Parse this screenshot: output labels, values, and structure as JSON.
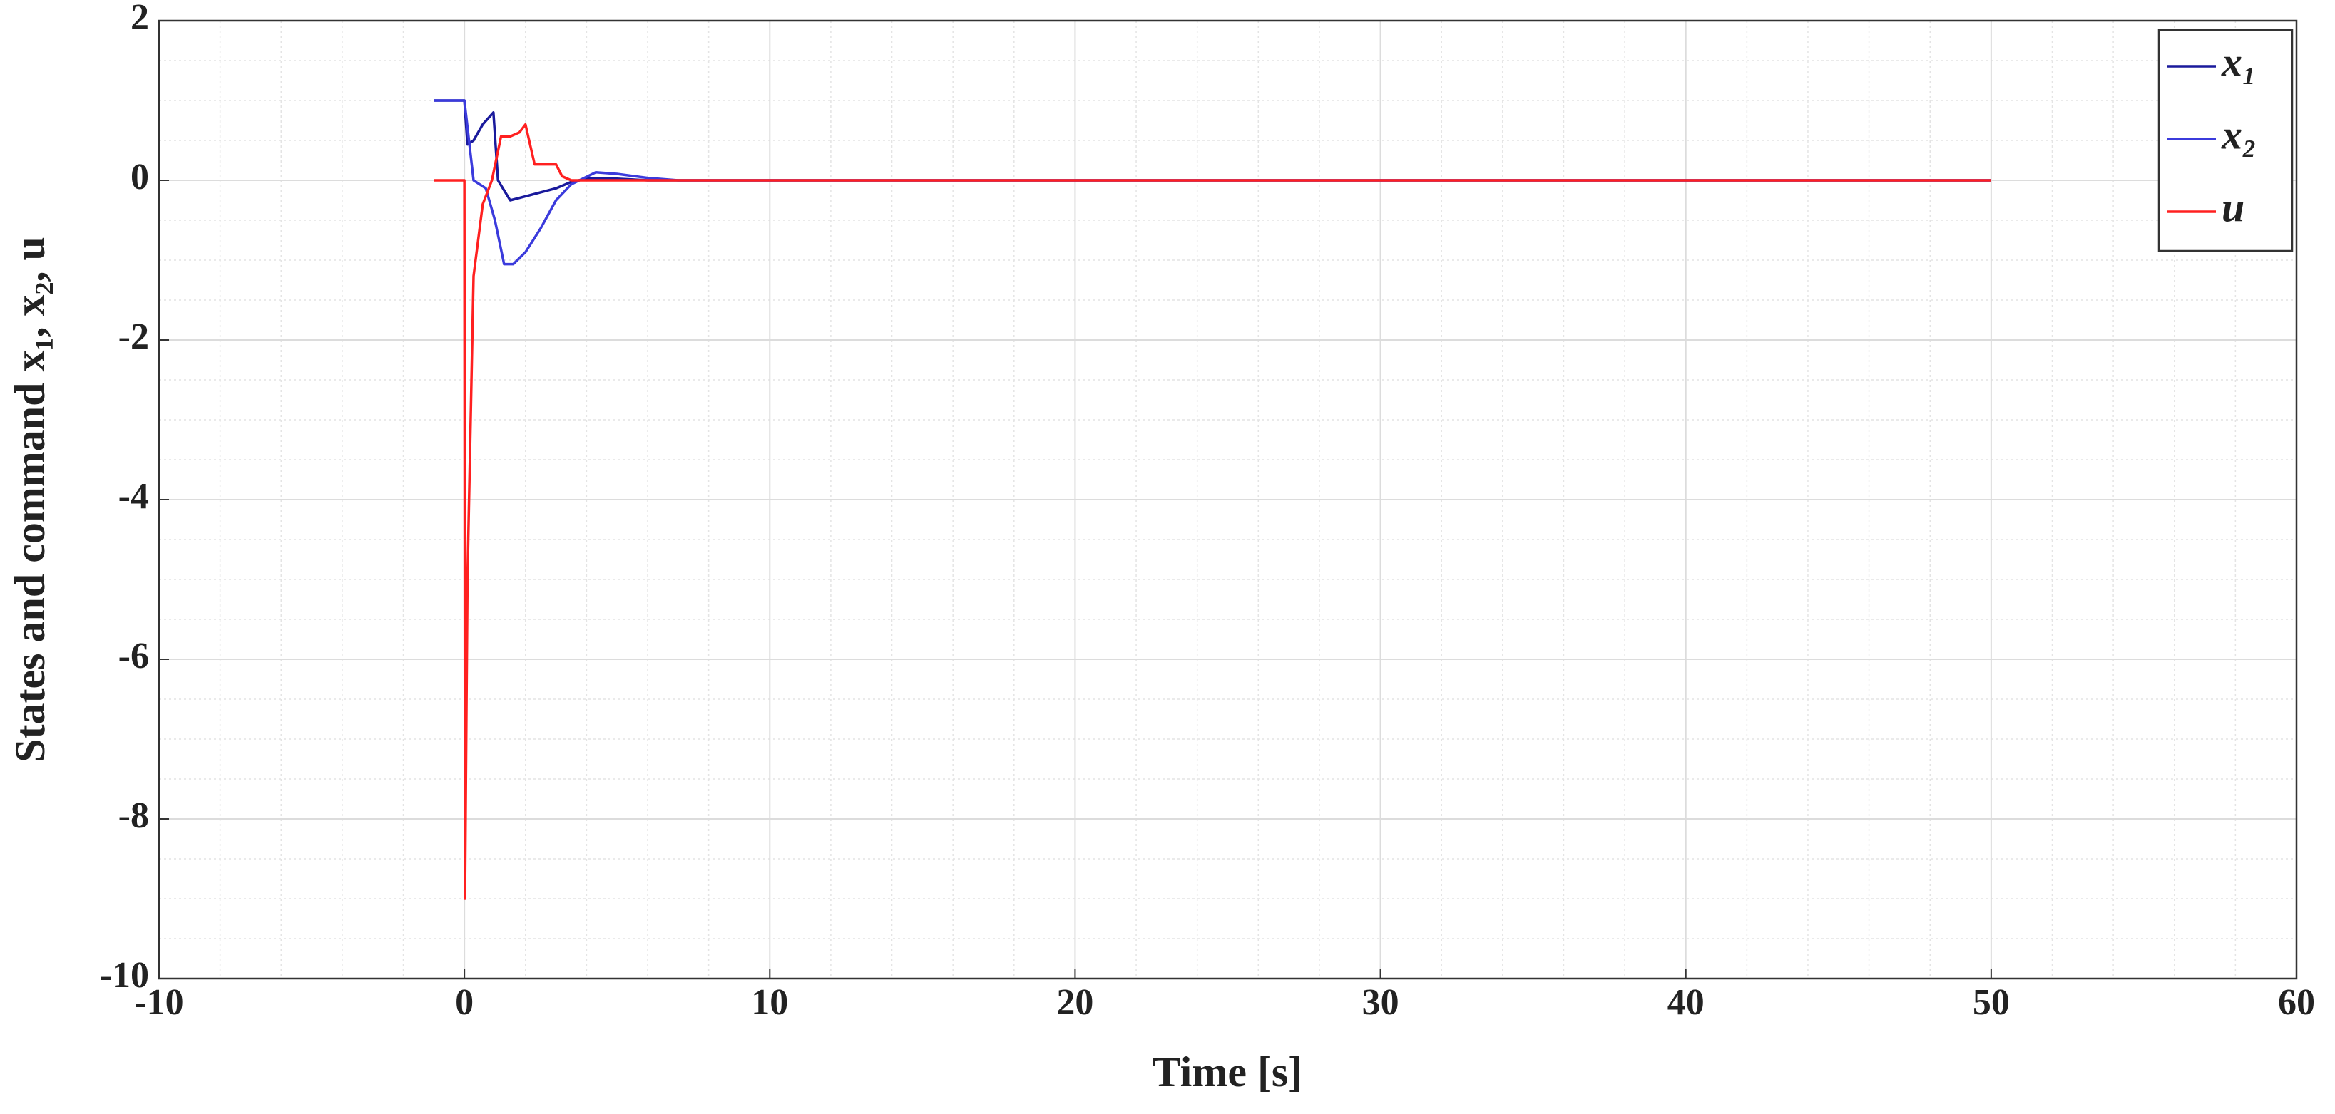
{
  "chart_data": {
    "type": "line",
    "xlabel": "Time [s]",
    "ylabel": "States and command x₁, x₂, u",
    "xlim": [
      -10,
      60
    ],
    "ylim": [
      -10,
      2
    ],
    "xticks": [
      -10,
      0,
      10,
      20,
      30,
      40,
      50,
      60
    ],
    "yticks": [
      -10,
      -8,
      -6,
      -4,
      -2,
      0,
      2
    ],
    "grid": true,
    "minor_grid": true,
    "legend": "upper right",
    "series": [
      {
        "name": "x₁",
        "color": "#1a1a9c",
        "x": [
          -1,
          0,
          0.1,
          0.3,
          0.6,
          0.95,
          1.1,
          1.5,
          2,
          2.5,
          3,
          3.5,
          4,
          5,
          6,
          8,
          50
        ],
        "values": [
          1,
          1,
          0.45,
          0.5,
          0.7,
          0.85,
          0,
          -0.25,
          -0.2,
          -0.15,
          -0.1,
          -0.02,
          0.02,
          0.02,
          0,
          0,
          0
        ]
      },
      {
        "name": "x₂",
        "color": "#3b3bdc",
        "x": [
          -1,
          0,
          0.3,
          0.7,
          1,
          1.3,
          1.6,
          2,
          2.5,
          3,
          3.5,
          4.3,
          5,
          6,
          7,
          50
        ],
        "values": [
          1,
          1,
          0,
          -0.1,
          -0.5,
          -1.05,
          -1.05,
          -0.9,
          -0.6,
          -0.25,
          -0.05,
          0.1,
          0.08,
          0.03,
          0,
          0
        ]
      },
      {
        "name": "u",
        "color": "#ff2020",
        "x": [
          -1,
          0,
          0.02,
          0.1,
          0.3,
          0.6,
          0.9,
          1.2,
          1.5,
          1.8,
          2,
          2.3,
          2.6,
          3,
          3.2,
          3.5,
          5,
          50
        ],
        "values": [
          0,
          0,
          -9,
          -5,
          -1.2,
          -0.3,
          0,
          0.55,
          0.55,
          0.6,
          0.7,
          0.2,
          0.2,
          0.2,
          0.05,
          0,
          0,
          0
        ]
      }
    ]
  }
}
